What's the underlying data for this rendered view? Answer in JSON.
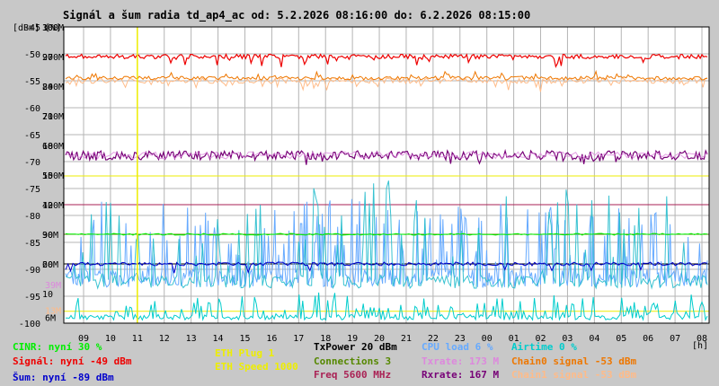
{
  "title": "Signál a šum radia td_ap4_ac od: 5.2.2026 08:16:00 do: 6.2.2026 08:15:00",
  "unit_label": "[dBm] [%]",
  "x_unit": "[h]",
  "colors": {
    "cinr": "#00ee00",
    "signal": "#ee0000",
    "noise": "#0000cc",
    "eth_plug": "#eeee00",
    "eth_speed": "#eeee00",
    "txpower": "#000000",
    "connections": "#558800",
    "freq": "#aa2255",
    "cpu": "#66aaff",
    "txrate": "#dd88dd",
    "rxrate": "#770077",
    "airtime": "#00cccc",
    "chain0": "#ee7700",
    "chain1": "#ffbb88"
  },
  "legend": {
    "col1": [
      "CINR: nyní 30 %",
      "Signál: nyní -49 dBm",
      "Šum: nyní -89 dBm"
    ],
    "col2": [
      "ETH Plug 1",
      "ETH Speed 1000"
    ],
    "col3": [
      "TxPower 20 dBm",
      "Connections 3",
      "Freq 5600 MHz"
    ],
    "col4": [
      "CPU load 6 %",
      "Txrate: 173 M",
      "Rxrate: 167 M"
    ],
    "col5": [
      "Airtime 0 %",
      "Chain0 signal -53 dBm",
      "Chain1 signal -53 dBm"
    ]
  },
  "chart_data": {
    "type": "line",
    "title": "Signál a šum radia td_ap4_ac od: 5.2.2026 08:16:00 do: 6.2.2026 08:15:00",
    "grid": true,
    "y_axes": {
      "dBm": {
        "range": [
          -100,
          -45
        ],
        "ticks": [
          -100,
          -95,
          -90,
          -85,
          -80,
          -75,
          -70,
          -65,
          -60,
          -55,
          -50,
          -45
        ]
      },
      "percent": {
        "range": [
          0,
          100
        ],
        "ticks": [
          10,
          20,
          30,
          40,
          50,
          60,
          70,
          80,
          90,
          100
        ]
      },
      "rate": {
        "range": [
          0,
          300
        ],
        "ticks": [
          "6M",
          "13M",
          "39M",
          "60M",
          "90M",
          "120M",
          "150M",
          "180M",
          "210M",
          "240M",
          "270M",
          "300M"
        ]
      }
    },
    "x_ticks": [
      "09",
      "10",
      "11",
      "12",
      "13",
      "14",
      "15",
      "16",
      "17",
      "18",
      "19",
      "20",
      "21",
      "22",
      "23",
      "00",
      "01",
      "02",
      "03",
      "04",
      "05",
      "06",
      "07",
      "08"
    ],
    "marker_hour": "11",
    "series": [
      {
        "name": "Signál",
        "unit": "dBm",
        "level": -50,
        "now": -49
      },
      {
        "name": "Chain0 signal",
        "unit": "dBm",
        "level": -54,
        "now": -53
      },
      {
        "name": "Chain1 signal",
        "unit": "dBm",
        "level": -55,
        "now": -53
      },
      {
        "name": "Šum",
        "unit": "dBm",
        "level": -89,
        "now": -89
      },
      {
        "name": "CINR",
        "unit": "%",
        "level": 30,
        "now": 30
      },
      {
        "name": "Txrate",
        "unit": "M",
        "level": 173,
        "now": 173
      },
      {
        "name": "Rxrate",
        "unit": "M",
        "level": 167,
        "now": 167
      },
      {
        "name": "CPU load",
        "unit": "%",
        "level": 15,
        "now": 6
      },
      {
        "name": "Airtime",
        "unit": "%",
        "level": 5,
        "now": 0
      }
    ]
  }
}
